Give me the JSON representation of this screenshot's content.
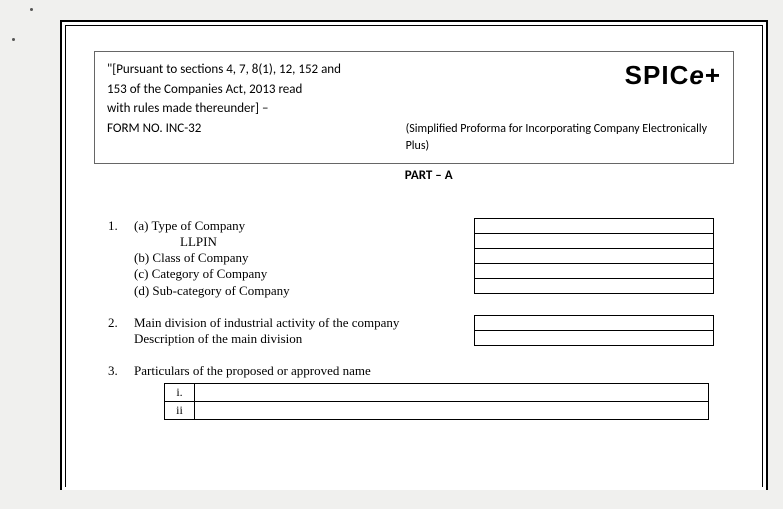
{
  "header": {
    "pursuant_line1": "\"[Pursuant to sections 4, 7, 8(1), 12, 152 and",
    "pursuant_line2": "153 of the Companies Act, 2013 read",
    "pursuant_line3": "with rules made thereunder] –",
    "form_no": "FORM NO. INC-32",
    "brand_main": "SPIC",
    "brand_e": "e",
    "brand_plus": "+",
    "subtitle_line1": "(Simplified Proforma for Incorporating Company Electronically",
    "subtitle_line2": "Plus)"
  },
  "part_label": "PART – A",
  "items": {
    "i1": {
      "num": "1.",
      "a": "(a) Type of Company",
      "llpin": "LLPIN",
      "b": "(b) Class of Company",
      "c": "(c) Category of Company",
      "d": "(d) Sub-category of Company"
    },
    "i2": {
      "num": "2.",
      "line1": "Main division of industrial activity of the company",
      "line2": "Description of the main division"
    },
    "i3": {
      "num": "3.",
      "title": "Particulars of the proposed or approved name",
      "row1": "i.",
      "row2": "ii"
    }
  },
  "styling": {
    "page_bg": "#f0f0ee",
    "inner_bg": "#ffffff",
    "border_color": "#000000",
    "soft_border": "#666666",
    "body_font": "Times New Roman",
    "header_font": "Calibri",
    "body_fontsize": 13,
    "brand_fontsize": 26,
    "field_box_h": 16
  }
}
